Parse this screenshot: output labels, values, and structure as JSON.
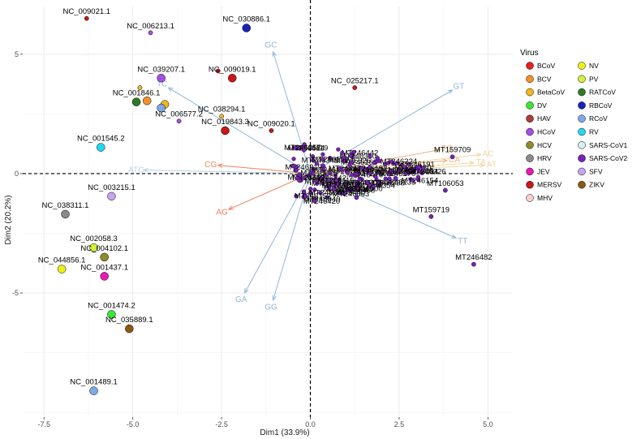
{
  "chart_data": {
    "type": "scatter",
    "subtype": "pca-biplot",
    "xlabel": "Dim1 (33.9%)",
    "ylabel": "Dim2 (20.2%)",
    "xlim": [
      -8.1,
      5.7
    ],
    "ylim": [
      -10.2,
      7.0
    ],
    "x_ticks": [
      -7.5,
      -5.0,
      -2.5,
      0.0,
      2.5,
      5.0
    ],
    "x_tick_labels": [
      "-7.5",
      "-5.0",
      "-2.5",
      "0.0",
      "2.5",
      "5.0"
    ],
    "y_ticks": [
      -5,
      0,
      5
    ],
    "y_tick_labels": [
      "-5",
      "0",
      "5"
    ],
    "grid": true,
    "reference_lines": [
      "x=0 dashed",
      "y=0 dashed"
    ],
    "legend": {
      "title": "Virus",
      "placement": "right",
      "entries": [
        {
          "name": "BCoV",
          "color": "#e8211b"
        },
        {
          "name": "BCV",
          "color": "#f0922a"
        },
        {
          "name": "BetaCoV",
          "color": "#f2b81c"
        },
        {
          "name": "DV",
          "color": "#37e834"
        },
        {
          "name": "HAV",
          "color": "#b13a3a"
        },
        {
          "name": "HCoV",
          "color": "#a84ce8"
        },
        {
          "name": "HCV",
          "color": "#8f8a2c"
        },
        {
          "name": "HRV",
          "color": "#8a8a8a"
        },
        {
          "name": "JEV",
          "color": "#e818b8"
        },
        {
          "name": "MERSV",
          "color": "#c81818"
        },
        {
          "name": "MHV",
          "color": "#f8cfcf"
        },
        {
          "name": "NV",
          "color": "#eef018"
        },
        {
          "name": "PV",
          "color": "#d6f03a"
        },
        {
          "name": "RATCoV",
          "color": "#2f7a23"
        },
        {
          "name": "RBCoV",
          "color": "#1a22b8"
        },
        {
          "name": "RCoV",
          "color": "#7fa8e8"
        },
        {
          "name": "RV",
          "color": "#22d8f0"
        },
        {
          "name": "SARS-CoV1",
          "color": "#d4f0f0"
        },
        {
          "name": "SARS-CoV2",
          "color": "#7a22b8"
        },
        {
          "name": "SFV",
          "color": "#c7a3f0"
        },
        {
          "name": "ZIKV",
          "color": "#8a5a14"
        }
      ]
    },
    "points": [
      {
        "label": "NC_009021.1",
        "x": -6.3,
        "y": 6.5,
        "group": "MERSV",
        "size": "small"
      },
      {
        "label": "NC_006213.1",
        "x": -4.5,
        "y": 5.9,
        "group": "HCoV",
        "size": "small"
      },
      {
        "label": "NC_030886.1",
        "x": -1.8,
        "y": 6.1,
        "group": "RBCoV",
        "size": "large"
      },
      {
        "label": "NC_009019.1",
        "x": -2.2,
        "y": 4.0,
        "group": "MERSV",
        "size": "large"
      },
      {
        "label": "",
        "x": -2.6,
        "y": 4.3,
        "group": "MERSV",
        "size": "small"
      },
      {
        "label": "NC_039207.1",
        "x": -4.2,
        "y": 4.0,
        "group": "HCoV",
        "size": "large"
      },
      {
        "label": "NC_001846.1",
        "x": -4.9,
        "y": 3.0,
        "group": "RATCoV",
        "size": "large"
      },
      {
        "label": "",
        "x": -4.6,
        "y": 3.05,
        "group": "BCV",
        "size": "large"
      },
      {
        "label": "",
        "x": -4.1,
        "y": 2.9,
        "group": "BetaCoV",
        "size": "large"
      },
      {
        "label": "",
        "x": -4.2,
        "y": 2.75,
        "group": "RCoV",
        "size": "large"
      },
      {
        "label": "NC_006577.2",
        "x": -3.7,
        "y": 2.2,
        "group": "HCoV",
        "size": "small"
      },
      {
        "label": "",
        "x": -4.8,
        "y": 3.6,
        "group": "BetaCoV",
        "size": "small"
      },
      {
        "label": "NC_038294.1",
        "x": -2.5,
        "y": 2.4,
        "group": "BetaCoV",
        "size": "small"
      },
      {
        "label": "NC_019843.3",
        "x": -2.4,
        "y": 1.8,
        "group": "MERSV",
        "size": "large"
      },
      {
        "label": "NC_009020.1",
        "x": -1.1,
        "y": 1.8,
        "group": "MERSV",
        "size": "small"
      },
      {
        "label": "NC_025217.1",
        "x": 1.25,
        "y": 3.6,
        "group": "MERSV",
        "size": "small"
      },
      {
        "label": "NC_001545.2",
        "x": -5.9,
        "y": 1.1,
        "group": "RV",
        "size": "large"
      },
      {
        "label": "NC_003215.1",
        "x": -5.6,
        "y": -0.95,
        "group": "SFV",
        "size": "large"
      },
      {
        "label": "NC_038311.1",
        "x": -6.9,
        "y": -1.7,
        "group": "HRV",
        "size": "large"
      },
      {
        "label": "NC_002058.3",
        "x": -6.1,
        "y": -3.1,
        "group": "PV",
        "size": "large"
      },
      {
        "label": "NC_004102.1",
        "x": -5.8,
        "y": -3.5,
        "group": "HCV",
        "size": "large"
      },
      {
        "label": "NC_044856.1",
        "x": -7.0,
        "y": -4.0,
        "group": "NV",
        "size": "large"
      },
      {
        "label": "NC_001437.1",
        "x": -5.8,
        "y": -4.3,
        "group": "JEV",
        "size": "large"
      },
      {
        "label": "NC_001474.2",
        "x": -5.6,
        "y": -5.9,
        "group": "DV",
        "size": "large"
      },
      {
        "label": "NC_035889.1",
        "x": -5.1,
        "y": -6.5,
        "group": "ZIKV",
        "size": "large"
      },
      {
        "label": "NC_001489.1",
        "x": -6.1,
        "y": -9.1,
        "group": "RCoV",
        "size": "large"
      },
      {
        "label": "MT159709",
        "x": 4.0,
        "y": 0.7,
        "group": "SARS-CoV2",
        "size": "small"
      },
      {
        "label": "MT106053",
        "x": 3.8,
        "y": -0.7,
        "group": "SARS-CoV2",
        "size": "small"
      },
      {
        "label": "MT159719",
        "x": 3.4,
        "y": -1.8,
        "group": "SARS-CoV2",
        "size": "small"
      },
      {
        "label": "MT246482",
        "x": 4.6,
        "y": -3.8,
        "group": "SARS-CoV2",
        "size": "small"
      },
      {
        "label": "MT027062",
        "x": 2.4,
        "y": -0.2,
        "group": "SARS-CoV2",
        "size": "small"
      },
      {
        "label": "MT246458",
        "x": 1.3,
        "y": -1.0,
        "group": "SARS-CoV2",
        "size": "small"
      }
    ],
    "cluster": {
      "group": "SARS-CoV2",
      "x_range": [
        -0.5,
        3.2
      ],
      "y_range": [
        -1.2,
        1.3
      ],
      "count": 150,
      "label_prefix": "MT"
    },
    "variables": [
      {
        "name": "GT",
        "x": 4.0,
        "y": 3.5,
        "color": "#8fb8d8"
      },
      {
        "name": "GC",
        "x": -1.05,
        "y": 5.1,
        "color": "#8fb8d8"
      },
      {
        "name": "TC",
        "x": -4.0,
        "y": 3.6,
        "color": "#8fb8d8"
      },
      {
        "name": "TG",
        "x": 3.65,
        "y": 1.0,
        "color": "#f2b27d"
      },
      {
        "name": "CA",
        "x": 3.85,
        "y": 0.55,
        "color": "#f2b27d"
      },
      {
        "name": "AC",
        "x": 4.8,
        "y": 0.8,
        "color": "#f0d79d"
      },
      {
        "name": "TT",
        "x": 4.1,
        "y": -2.7,
        "color": "#8fb8d8"
      },
      {
        "name": "TA",
        "x": 4.6,
        "y": 0.45,
        "color": "#f0d79d"
      },
      {
        "name": "AT",
        "x": 4.9,
        "y": 0.35,
        "color": "#f0d79d"
      },
      {
        "name": "CG",
        "x": -2.6,
        "y": 0.35,
        "color": "#f0845a"
      },
      {
        "name": "ATC",
        "x": -4.7,
        "y": 0.15,
        "color": "#b8d0e0"
      },
      {
        "name": "AG",
        "x": -2.3,
        "y": -1.5,
        "color": "#f0845a"
      },
      {
        "name": "GA",
        "x": -1.85,
        "y": -5.0,
        "color": "#8fb8d8"
      },
      {
        "name": "GG",
        "x": -1.05,
        "y": -5.3,
        "color": "#8fb8d8"
      }
    ]
  }
}
